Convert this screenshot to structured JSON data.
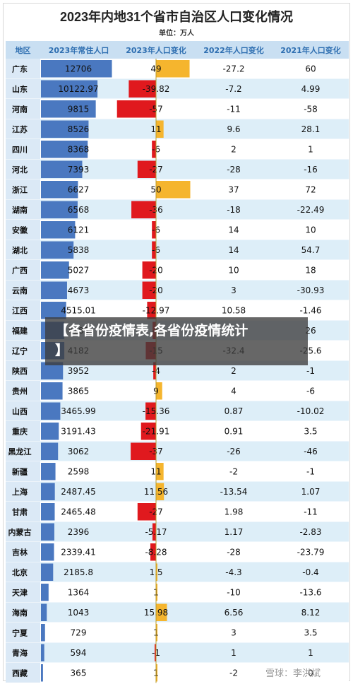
{
  "chart_data": {
    "type": "table",
    "title": "2023年内地31个省市自治区人口变化情况",
    "unit": "单位：万人",
    "columns": [
      "地区",
      "2023年常住人口",
      "2023年人口变化",
      "2022年人口变化",
      "2021年人口变化"
    ],
    "rows": [
      {
        "region": "广东",
        "pop": "12706",
        "c2023": "49",
        "c2022": "-27.2",
        "c2021": "60"
      },
      {
        "region": "山东",
        "pop": "10122.97",
        "c2023": "-39.82",
        "c2022": "-7.2",
        "c2021": "4.99"
      },
      {
        "region": "河南",
        "pop": "9815",
        "c2023": "-57",
        "c2022": "-11",
        "c2021": "-58"
      },
      {
        "region": "江苏",
        "pop": "8526",
        "c2023": "11",
        "c2022": "9.6",
        "c2021": "28.1"
      },
      {
        "region": "四川",
        "pop": "8368",
        "c2023": "-6",
        "c2022": "2",
        "c2021": "1"
      },
      {
        "region": "河北",
        "pop": "7393",
        "c2023": "-27",
        "c2022": "-28",
        "c2021": "-16"
      },
      {
        "region": "浙江",
        "pop": "6627",
        "c2023": "50",
        "c2022": "37",
        "c2021": "72"
      },
      {
        "region": "湖南",
        "pop": "6568",
        "c2023": "-36",
        "c2022": "-18",
        "c2021": "-22.49"
      },
      {
        "region": "安徽",
        "pop": "6121",
        "c2023": "-6",
        "c2022": "14",
        "c2021": "10"
      },
      {
        "region": "湖北",
        "pop": "5838",
        "c2023": "-6",
        "c2022": "14",
        "c2021": "54.7"
      },
      {
        "region": "广西",
        "pop": "5027",
        "c2023": "-20",
        "c2022": "10",
        "c2021": "18"
      },
      {
        "region": "云南",
        "pop": "4673",
        "c2023": "-20",
        "c2022": "3",
        "c2021": "-30.93"
      },
      {
        "region": "江西",
        "pop": "4515.01",
        "c2023": "-12.97",
        "c2022": "10.58",
        "c2021": "-1.46"
      },
      {
        "region": "福建",
        "pop": "4183",
        "c2023": "-5",
        "c2022": "",
        "c2021": "26"
      },
      {
        "region": "辽宁",
        "pop": "4182",
        "c2023": "-15",
        "c2022": "-32.4",
        "c2021": "-25.6"
      },
      {
        "region": "陕西",
        "pop": "3952",
        "c2023": "-4",
        "c2022": "2",
        "c2021": "-1"
      },
      {
        "region": "贵州",
        "pop": "3865",
        "c2023": "9",
        "c2022": "4",
        "c2021": "-6"
      },
      {
        "region": "山西",
        "pop": "3465.99",
        "c2023": "-15.36",
        "c2022": "0.87",
        "c2021": "-10.02"
      },
      {
        "region": "重庆",
        "pop": "3191.43",
        "c2023": "-21.91",
        "c2022": "0.91",
        "c2021": "3.5"
      },
      {
        "region": "黑龙江",
        "pop": "3062",
        "c2023": "-37",
        "c2022": "-26",
        "c2021": "-46"
      },
      {
        "region": "新疆",
        "pop": "2598",
        "c2023": "11",
        "c2022": "-2",
        "c2021": "-1"
      },
      {
        "region": "上海",
        "pop": "2487.45",
        "c2023": "11.56",
        "c2022": "-13.54",
        "c2021": "1.07"
      },
      {
        "region": "甘肃",
        "pop": "2465.48",
        "c2023": "-27",
        "c2022": "1.98",
        "c2021": "-11"
      },
      {
        "region": "内蒙古",
        "pop": "2396",
        "c2023": "-5.17",
        "c2022": "1.17",
        "c2021": "-2.83"
      },
      {
        "region": "吉林",
        "pop": "2339.41",
        "c2023": "-8.28",
        "c2022": "-28",
        "c2021": "-23.79"
      },
      {
        "region": "北京",
        "pop": "2185.8",
        "c2023": "1.5",
        "c2022": "-4.3",
        "c2021": "-0.4"
      },
      {
        "region": "天津",
        "pop": "1364",
        "c2023": "1",
        "c2022": "-10",
        "c2021": "-13.6"
      },
      {
        "region": "海南",
        "pop": "1043",
        "c2023": "15.98",
        "c2022": "6.56",
        "c2021": "8.12"
      },
      {
        "region": "宁夏",
        "pop": "729",
        "c2023": "1",
        "c2022": "3",
        "c2021": "3.5"
      },
      {
        "region": "青海",
        "pop": "594",
        "c2023": "-1",
        "c2022": "1",
        "c2021": "1"
      },
      {
        "region": "西藏",
        "pop": "365",
        "c2023": "1",
        "c2022": "-2",
        "c2021": "0"
      }
    ],
    "colors": {
      "header_bg": "#c9dff2",
      "header_text": "#2f6fb1",
      "row_alt": "#ddeef8",
      "row_white": "#ffffff",
      "region_bg": "#dbe9f6",
      "pop_bar": "#4a78c0",
      "pos_bar": "#f5b52e",
      "neg_bar": "#e0191e",
      "axis": "#b89a2a"
    }
  },
  "overlay": {
    "line1": "【各省份疫情表,各省份疫情统计",
    "line2": "】"
  },
  "watermark": "雪球：李洪斌"
}
